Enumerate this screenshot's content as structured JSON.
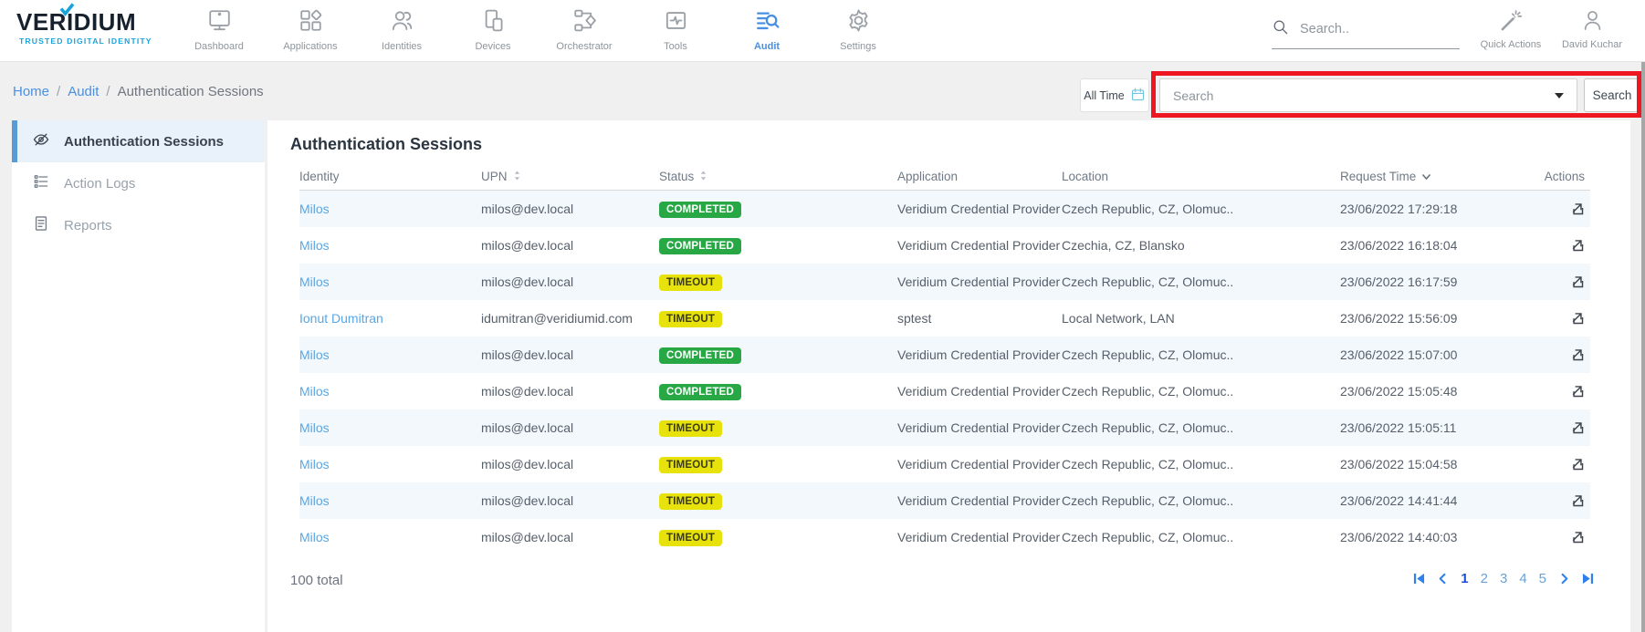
{
  "brand": {
    "name": "VERIDIUM",
    "tagline": "TRUSTED DIGITAL IDENTITY",
    "check_icon": "check-icon"
  },
  "topnav": {
    "items": [
      {
        "label": "Dashboard",
        "icon": "dashboard",
        "active": false
      },
      {
        "label": "Applications",
        "icon": "applications",
        "active": false
      },
      {
        "label": "Identities",
        "icon": "identities",
        "active": false
      },
      {
        "label": "Devices",
        "icon": "devices",
        "active": false
      },
      {
        "label": "Orchestrator",
        "icon": "orchestrator",
        "active": false
      },
      {
        "label": "Tools",
        "icon": "tools",
        "active": false
      },
      {
        "label": "Audit",
        "icon": "audit",
        "active": true
      },
      {
        "label": "Settings",
        "icon": "settings",
        "active": false
      }
    ]
  },
  "topbar": {
    "search_placeholder": "Search..",
    "quick_actions_label": "Quick Actions",
    "user_name": "David Kuchar"
  },
  "breadcrumb": {
    "separator": "/",
    "items": [
      {
        "label": "Home",
        "link": true
      },
      {
        "label": "Audit",
        "link": true
      },
      {
        "label": "Authentication Sessions",
        "link": false
      }
    ]
  },
  "filter_bar": {
    "time_filter_label": "All Time",
    "time_filter_icon": "calendar-icon",
    "search_dropdown_placeholder": "Search",
    "search_button_label": "Search"
  },
  "sidebar": {
    "items": [
      {
        "label": "Authentication Sessions",
        "icon": "eye-off",
        "active": true
      },
      {
        "label": "Action Logs",
        "icon": "list",
        "active": false
      },
      {
        "label": "Reports",
        "icon": "report",
        "active": false
      }
    ]
  },
  "main": {
    "title": "Authentication Sessions",
    "table": {
      "columns": [
        {
          "label": "Identity",
          "sort": "none"
        },
        {
          "label": "UPN",
          "sort": "both"
        },
        {
          "label": "Status",
          "sort": "both"
        },
        {
          "label": "Application",
          "sort": "none"
        },
        {
          "label": "Location",
          "sort": "none"
        },
        {
          "label": "Request Time",
          "sort": "desc"
        },
        {
          "label": "Actions",
          "sort": "none"
        }
      ],
      "rows": [
        {
          "identity": "Milos",
          "upn": "milos@dev.local",
          "status": "COMPLETED",
          "application": "Veridium Credential Provider",
          "location": "Czech Republic, CZ, Olomuc..",
          "request_time": "23/06/2022 17:29:18"
        },
        {
          "identity": "Milos",
          "upn": "milos@dev.local",
          "status": "COMPLETED",
          "application": "Veridium Credential Provider",
          "location": "Czechia, CZ, Blansko",
          "request_time": "23/06/2022 16:18:04"
        },
        {
          "identity": "Milos",
          "upn": "milos@dev.local",
          "status": "TIMEOUT",
          "application": "Veridium Credential Provider",
          "location": "Czech Republic, CZ, Olomuc..",
          "request_time": "23/06/2022 16:17:59"
        },
        {
          "identity": "Ionut Dumitran",
          "upn": "idumitran@veridiumid.com",
          "status": "TIMEOUT",
          "application": "sptest",
          "location": "Local Network, LAN",
          "request_time": "23/06/2022 15:56:09"
        },
        {
          "identity": "Milos",
          "upn": "milos@dev.local",
          "status": "COMPLETED",
          "application": "Veridium Credential Provider",
          "location": "Czech Republic, CZ, Olomuc..",
          "request_time": "23/06/2022 15:07:00"
        },
        {
          "identity": "Milos",
          "upn": "milos@dev.local",
          "status": "COMPLETED",
          "application": "Veridium Credential Provider",
          "location": "Czech Republic, CZ, Olomuc..",
          "request_time": "23/06/2022 15:05:48"
        },
        {
          "identity": "Milos",
          "upn": "milos@dev.local",
          "status": "TIMEOUT",
          "application": "Veridium Credential Provider",
          "location": "Czech Republic, CZ, Olomuc..",
          "request_time": "23/06/2022 15:05:11"
        },
        {
          "identity": "Milos",
          "upn": "milos@dev.local",
          "status": "TIMEOUT",
          "application": "Veridium Credential Provider",
          "location": "Czech Republic, CZ, Olomuc..",
          "request_time": "23/06/2022 15:04:58"
        },
        {
          "identity": "Milos",
          "upn": "milos@dev.local",
          "status": "TIMEOUT",
          "application": "Veridium Credential Provider",
          "location": "Czech Republic, CZ, Olomuc..",
          "request_time": "23/06/2022 14:41:44"
        },
        {
          "identity": "Milos",
          "upn": "milos@dev.local",
          "status": "TIMEOUT",
          "application": "Veridium Credential Provider",
          "location": "Czech Republic, CZ, Olomuc..",
          "request_time": "23/06/2022 14:40:03"
        }
      ]
    },
    "footer": {
      "total_label": "100 total",
      "pagination": {
        "pages": [
          "1",
          "2",
          "3",
          "4",
          "5"
        ],
        "current": "1"
      }
    }
  },
  "colors": {
    "accent_blue": "#4a90e2",
    "link_blue": "#58a7e5",
    "status_green": "#28a745",
    "status_yellow": "#e8e20c",
    "annotation_red": "#ee1620",
    "tagline_blue": "#18a3dc",
    "calendar_blue": "#6ec6e6"
  }
}
